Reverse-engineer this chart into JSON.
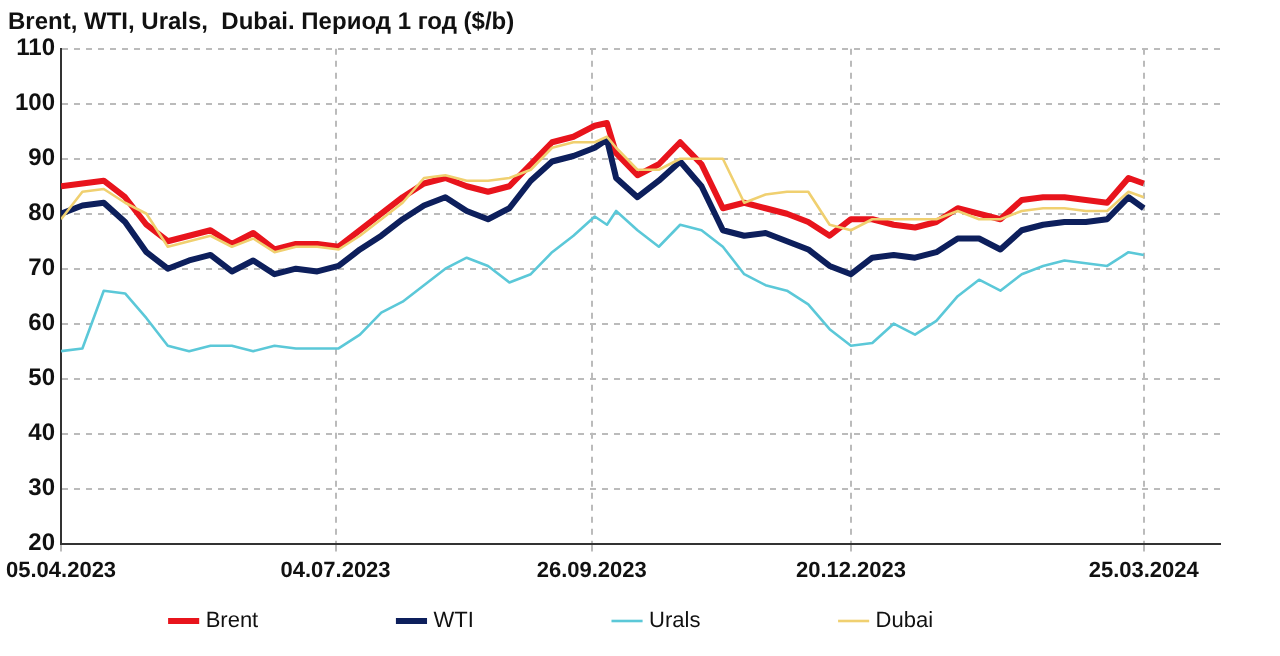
{
  "chart_data": {
    "type": "line",
    "title": "Brent, WTI, Urals,  Dubai. Период 1 год ($/b)",
    "x": [
      "2023-04-05",
      "2023-04-12",
      "2023-04-19",
      "2023-04-26",
      "2023-05-03",
      "2023-05-10",
      "2023-05-17",
      "2023-05-24",
      "2023-05-31",
      "2023-06-07",
      "2023-06-14",
      "2023-06-21",
      "2023-06-28",
      "2023-07-05",
      "2023-07-12",
      "2023-07-19",
      "2023-07-26",
      "2023-08-02",
      "2023-08-09",
      "2023-08-16",
      "2023-08-23",
      "2023-08-30",
      "2023-09-06",
      "2023-09-13",
      "2023-09-20",
      "2023-09-27",
      "2023-10-01",
      "2023-10-04",
      "2023-10-11",
      "2023-10-18",
      "2023-10-25",
      "2023-11-01",
      "2023-11-08",
      "2023-11-15",
      "2023-11-22",
      "2023-11-29",
      "2023-12-06",
      "2023-12-13",
      "2023-12-20",
      "2023-12-27",
      "2024-01-03",
      "2024-01-10",
      "2024-01-17",
      "2024-01-24",
      "2024-01-31",
      "2024-02-07",
      "2024-02-14",
      "2024-02-21",
      "2024-02-28",
      "2024-03-06",
      "2024-03-13",
      "2024-03-20",
      "2024-03-25"
    ],
    "series": [
      {
        "name": "Brent",
        "color": "#e8141c",
        "values": [
          85,
          85.5,
          86,
          83,
          78,
          75,
          76,
          77,
          74.5,
          76.5,
          73.5,
          74.5,
          74.5,
          74,
          77,
          80,
          83,
          85.5,
          86.5,
          85,
          84,
          85,
          89,
          93,
          94,
          96,
          96.5,
          91,
          87,
          89,
          93,
          89,
          81,
          82,
          81,
          80,
          78.5,
          76,
          79,
          79,
          78,
          77.5,
          78.5,
          81,
          80,
          79,
          82.5,
          83,
          83,
          82.5,
          82,
          86.5,
          85.5
        ]
      },
      {
        "name": "WTI",
        "color": "#0d1f5c",
        "values": [
          80,
          81.5,
          82,
          78.5,
          73,
          70,
          71.5,
          72.5,
          69.5,
          71.5,
          69,
          70,
          69.5,
          70.5,
          73.5,
          76,
          79,
          81.5,
          83,
          80.5,
          79,
          81,
          86,
          89.5,
          90.5,
          92,
          93.5,
          86.5,
          83,
          86,
          89.5,
          85,
          77,
          76,
          76.5,
          75,
          73.5,
          70.5,
          69,
          72,
          72.5,
          72,
          73,
          75.5,
          75.5,
          73.5,
          77,
          78,
          78.5,
          78.5,
          79,
          83,
          81
        ]
      },
      {
        "name": "Urals",
        "color": "#5bc8d8",
        "values": [
          55,
          55.5,
          66,
          65.5,
          61,
          56,
          55,
          56,
          56,
          55,
          56,
          55.5,
          55.5,
          55.5,
          58,
          62,
          64,
          67,
          70,
          72,
          70.5,
          67.5,
          69,
          73,
          76,
          79.5,
          78,
          80.5,
          77,
          74,
          78,
          77,
          74,
          69,
          67,
          66,
          63.5,
          59,
          56,
          56.5,
          60,
          58,
          60.5,
          65,
          68,
          66,
          69,
          70.5,
          71.5,
          71,
          70.5,
          73,
          72.5
        ]
      },
      {
        "name": "Dubai",
        "color": "#f0d070",
        "values": [
          79,
          84,
          84.5,
          82,
          80,
          74,
          75,
          76,
          74,
          75.5,
          73,
          74,
          74,
          73.5,
          76,
          79,
          82,
          86.5,
          87,
          86,
          86,
          86.5,
          88,
          92,
          93,
          93,
          94,
          92,
          88,
          88,
          90,
          90,
          90,
          82,
          83.5,
          84,
          84,
          78,
          77,
          79,
          79,
          79,
          79,
          80.5,
          79,
          79,
          80.5,
          81,
          81,
          80.5,
          80.5,
          84,
          83
        ]
      }
    ],
    "xlim": [
      "2023-04-05",
      "2024-04-19"
    ],
    "xticks": [
      {
        "value": "2023-04-05",
        "label": "05.04.2023"
      },
      {
        "value": "2023-07-04",
        "label": "04.07.2023"
      },
      {
        "value": "2023-09-26",
        "label": "26.09.2023"
      },
      {
        "value": "2023-12-20",
        "label": "20.12.2023"
      },
      {
        "value": "2024-03-25",
        "label": "25.03.2024"
      }
    ],
    "ylim": [
      20,
      110
    ],
    "yticks": [
      20,
      30,
      40,
      50,
      60,
      70,
      80,
      90,
      100,
      110
    ],
    "grid": true,
    "legend": "bottom",
    "marker": "none",
    "line_style": "solid"
  }
}
